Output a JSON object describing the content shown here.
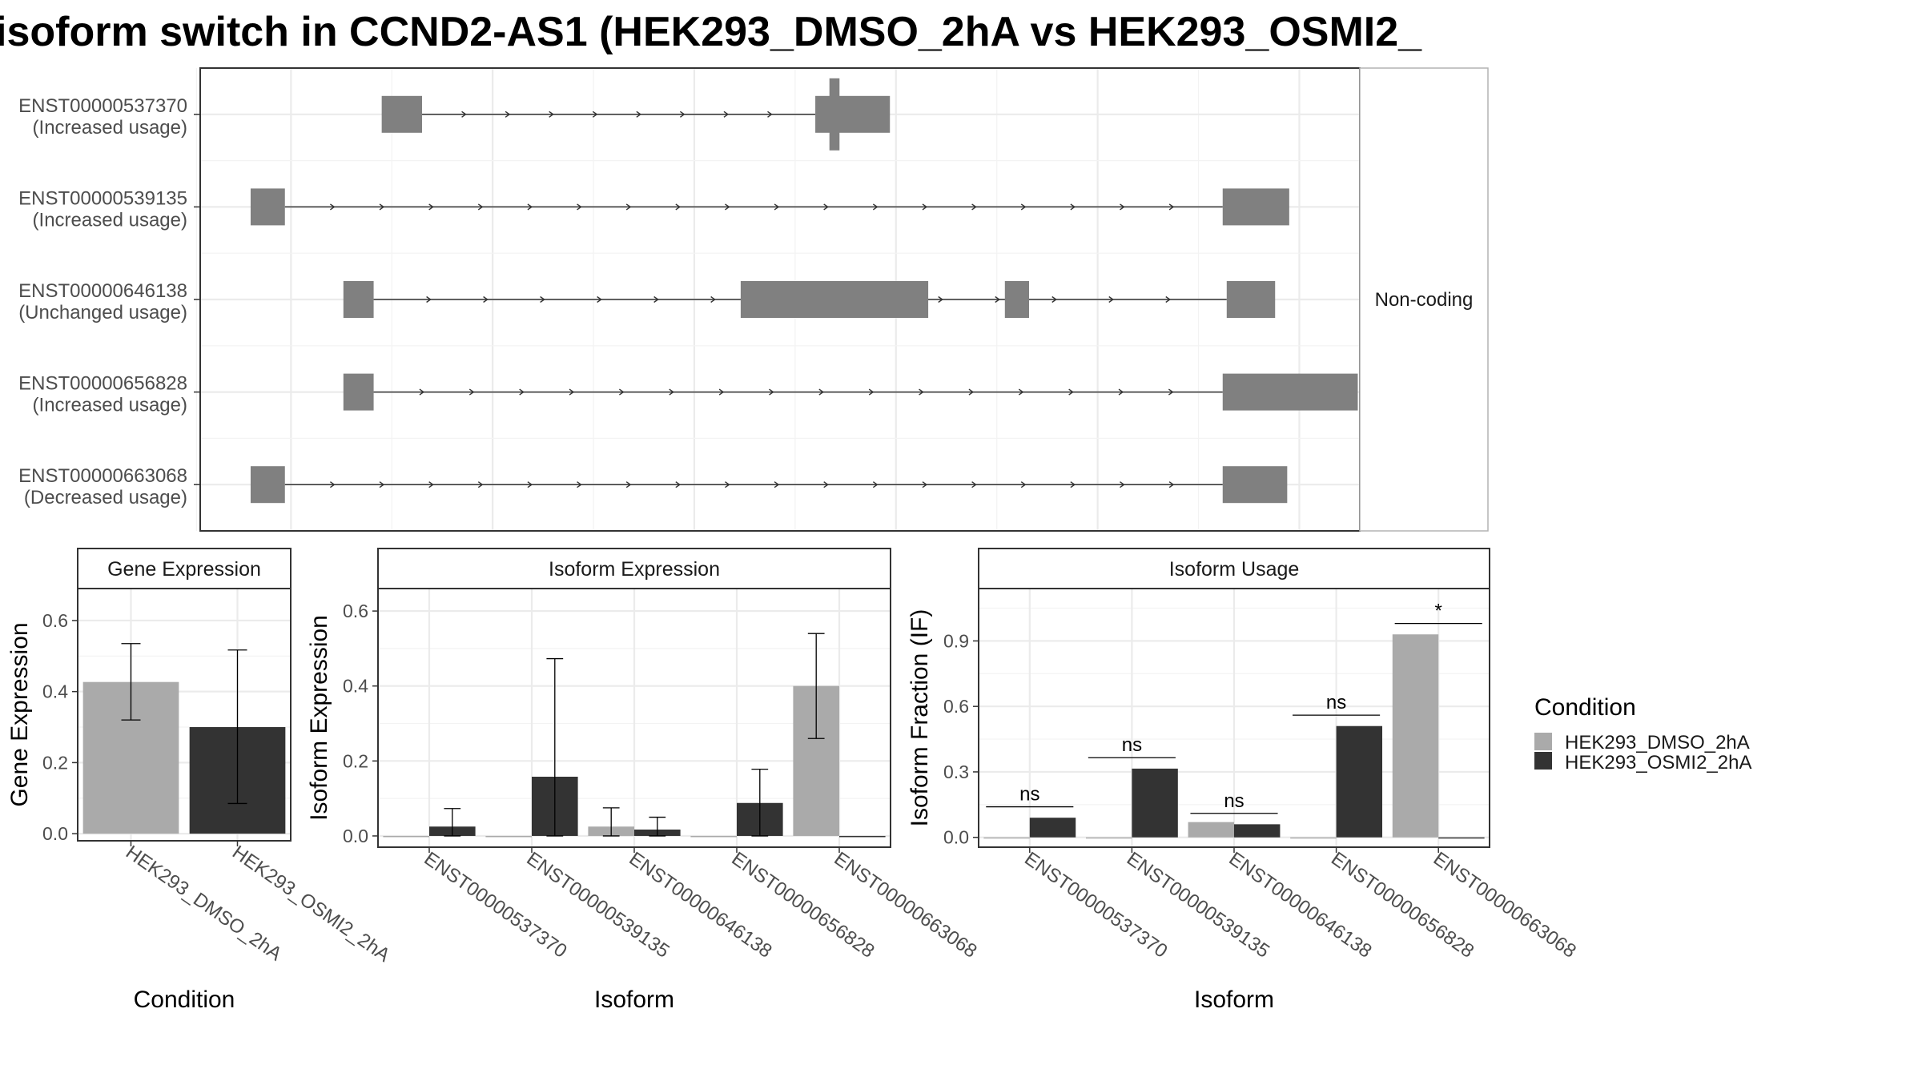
{
  "title": "isoform switch in CCND2-AS1 (HEK293_DMSO_2hA vs HEK293_OSMI2_",
  "colors": {
    "dmso": "#aaaaaa",
    "osmi": "#333333",
    "exon": "#808080",
    "grid": "#ebebeb",
    "frame": "#333333"
  },
  "structure_panel": {
    "strip_label": "Non-coding",
    "transcripts": [
      {
        "id": "ENST00000537370",
        "usage": "(Increased usage)",
        "exons": [
          [
            3.45,
            3.65
          ],
          [
            5.6,
            5.97
          ]
        ],
        "cds": [
          [
            5.67,
            5.72
          ]
        ],
        "intron_arrows": 8
      },
      {
        "id": "ENST00000539135",
        "usage": "(Increased usage)",
        "exons": [
          [
            2.8,
            2.97
          ],
          [
            7.62,
            7.95
          ]
        ],
        "cds": [],
        "intron_arrows": 18
      },
      {
        "id": "ENST00000646138",
        "usage": "(Unchanged usage)",
        "exons": [
          [
            3.26,
            3.41
          ],
          [
            5.23,
            6.16
          ],
          [
            6.54,
            6.66
          ],
          [
            7.64,
            7.88
          ]
        ],
        "cds": [],
        "intron_arrows": 14
      },
      {
        "id": "ENST00000656828",
        "usage": "(Increased usage)",
        "exons": [
          [
            3.26,
            3.41
          ],
          [
            7.62,
            8.29
          ]
        ],
        "cds": [],
        "intron_arrows": 16
      },
      {
        "id": "ENST00000663068",
        "usage": "(Decreased usage)",
        "exons": [
          [
            2.8,
            2.97
          ],
          [
            7.62,
            7.94
          ]
        ],
        "cds": [],
        "intron_arrows": 18
      }
    ],
    "x_range": [
      2.55,
      8.3
    ]
  },
  "chart_data": [
    {
      "type": "bar",
      "title": "Gene Expression",
      "xlabel": "Condition",
      "ylabel": "Gene Expression",
      "ylim": [
        -0.02,
        0.69
      ],
      "yticks": [
        "0.0",
        "0.2",
        "0.4",
        "0.6"
      ],
      "ytick_values": [
        0,
        0.2,
        0.4,
        0.6
      ],
      "categories": [
        "HEK293_DMSO_2hA",
        "HEK293_OSMI2_2hA"
      ],
      "series": [
        {
          "name": "HEK293_DMSO_2hA",
          "values": [
            0.427,
            null
          ],
          "err_low": [
            0.32,
            null
          ],
          "err_high": [
            0.535,
            null
          ]
        },
        {
          "name": "HEK293_OSMI2_2hA",
          "values": [
            null,
            0.3
          ],
          "err_low": [
            null,
            0.085
          ],
          "err_high": [
            null,
            0.517
          ]
        }
      ]
    },
    {
      "type": "bar",
      "title": "Isoform Expression",
      "xlabel": "Isoform",
      "ylabel": "Isoform Expression",
      "ylim": [
        -0.03,
        0.66
      ],
      "yticks": [
        "0.0",
        "0.2",
        "0.4",
        "0.6"
      ],
      "ytick_values": [
        0,
        0.2,
        0.4,
        0.6
      ],
      "categories": [
        "ENST00000537370",
        "ENST00000539135",
        "ENST00000646138",
        "ENST00000656828",
        "ENST00000663068"
      ],
      "series": [
        {
          "name": "HEK293_DMSO_2hA",
          "values": [
            0,
            0,
            0.025,
            0,
            0.4
          ],
          "err_low": [
            null,
            null,
            0,
            null,
            0.26
          ],
          "err_high": [
            null,
            null,
            0.075,
            null,
            0.54
          ]
        },
        {
          "name": "HEK293_OSMI2_2hA",
          "values": [
            0.025,
            0.158,
            0.017,
            0.088,
            0
          ],
          "err_low": [
            0,
            0,
            0,
            0,
            null
          ],
          "err_high": [
            0.073,
            0.473,
            0.05,
            0.178,
            null
          ]
        }
      ]
    },
    {
      "type": "bar",
      "title": "Isoform Usage",
      "xlabel": "Isoform",
      "ylabel": "Isoform Fraction (IF)",
      "ylim": [
        -0.045,
        1.14
      ],
      "yticks": [
        "0.0",
        "0.3",
        "0.6",
        "0.9"
      ],
      "ytick_values": [
        0,
        0.3,
        0.6,
        0.9
      ],
      "categories": [
        "ENST00000537370",
        "ENST00000539135",
        "ENST00000646138",
        "ENST00000656828",
        "ENST00000663068"
      ],
      "series": [
        {
          "name": "HEK293_DMSO_2hA",
          "values": [
            0,
            0,
            0.07,
            0,
            0.93
          ]
        },
        {
          "name": "HEK293_OSMI2_2hA",
          "values": [
            0.09,
            0.315,
            0.06,
            0.51,
            0
          ]
        }
      ],
      "annotations": [
        {
          "category": "ENST00000537370",
          "label": "ns",
          "y": 0.14
        },
        {
          "category": "ENST00000539135",
          "label": "ns",
          "y": 0.365
        },
        {
          "category": "ENST00000646138",
          "label": "ns",
          "y": 0.11
        },
        {
          "category": "ENST00000656828",
          "label": "ns",
          "y": 0.56
        },
        {
          "category": "ENST00000663068",
          "label": "*",
          "y": 0.98
        }
      ]
    }
  ],
  "legend": {
    "title": "Condition",
    "placement": "right",
    "items": [
      {
        "label": "HEK293_DMSO_2hA",
        "color": "#aaaaaa"
      },
      {
        "label": "HEK293_OSMI2_2hA",
        "color": "#333333"
      }
    ]
  }
}
